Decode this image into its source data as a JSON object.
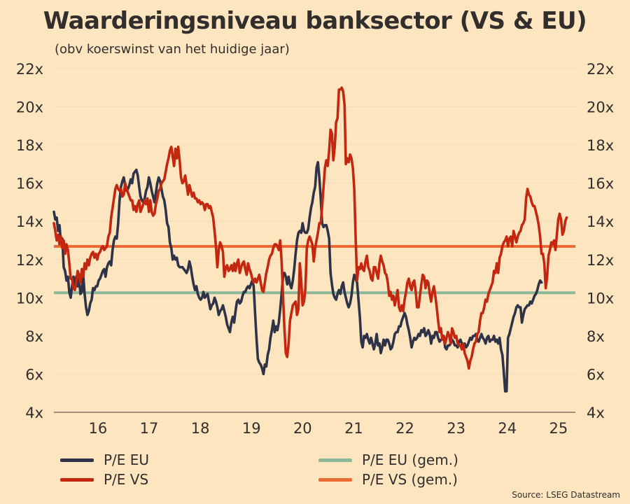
{
  "header": {
    "title": "Waarderingsniveau banksector (VS & EU)",
    "subtitle": "(obv koerswinst van het huidige jaar)"
  },
  "source": "Source: LSEG Datastream",
  "colors": {
    "background": "#fde5c0",
    "pe_eu": "#2f3347",
    "pe_vs": "#c4270f",
    "pe_eu_avg": "#8db69b",
    "pe_vs_avg": "#ec6a33",
    "grid": "#d9c4a3",
    "axis": "#6b5b4e"
  },
  "chart_data": {
    "type": "line",
    "title": "Waarderingsniveau banksector (VS & EU)",
    "subtitle": "(obv koerswinst van het huidige jaar)",
    "xlabel": "",
    "ylabel": "",
    "xlim": [
      2015.14,
      2025.33
    ],
    "ylim": [
      4,
      22
    ],
    "grid": true,
    "y_ticks": [
      4,
      6,
      8,
      10,
      12,
      14,
      16,
      18,
      20,
      22
    ],
    "y_tick_labels": [
      "4x",
      "6x",
      "8x",
      "10x",
      "12x",
      "14x",
      "16x",
      "18x",
      "20x",
      "22x"
    ],
    "x_ticks": [
      2016,
      2017,
      2018,
      2019,
      2020,
      2021,
      2022,
      2023,
      2024,
      2025
    ],
    "x_tick_labels": [
      "16",
      "17",
      "18",
      "19",
      "20",
      "21",
      "22",
      "23",
      "24",
      "25"
    ],
    "legend_position": "bottom",
    "averages": {
      "pe_eu_avg": 10.26,
      "pe_vs_avg": 12.69
    },
    "legend": [
      {
        "key": "pe_eu",
        "label": "P/E EU"
      },
      {
        "key": "pe_vs",
        "label": "P/E VS"
      },
      {
        "key": "pe_eu_avg",
        "label": "P/E EU (gem.)"
      },
      {
        "key": "pe_vs_avg",
        "label": "P/E VS (gem.)"
      }
    ],
    "series": [
      {
        "name": "P/E EU",
        "key": "pe_eu",
        "x0": 2015.14,
        "step": 0.0273,
        "values": [
          14.5,
          14.1,
          14.2,
          13.5,
          13.8,
          12.9,
          13.1,
          11.6,
          11.4,
          10.9,
          11.1,
          10.3,
          10.0,
          10.6,
          11.1,
          10.5,
          11.1,
          10.6,
          11.0,
          10.2,
          10.3,
          11.2,
          10.2,
          9.5,
          9.1,
          9.3,
          9.7,
          9.9,
          10.5,
          10.4,
          10.6,
          10.6,
          10.9,
          11.0,
          11.2,
          11.4,
          11.5,
          11.1,
          11.6,
          11.8,
          11.9,
          11.7,
          12.5,
          13.0,
          13.2,
          13.1,
          13.9,
          15.1,
          15.8,
          16.1,
          16.3,
          15.9,
          15.6,
          15.7,
          15.9,
          16.2,
          16.0,
          16.5,
          16.6,
          16.7,
          16.4,
          15.8,
          15.3,
          15.1,
          15.0,
          15.2,
          15.6,
          15.8,
          16.3,
          16.0,
          15.6,
          15.3,
          15.0,
          15.5,
          16.0,
          16.3,
          16.1,
          15.7,
          15.3,
          15.1,
          14.6,
          13.9,
          13.7,
          12.9,
          12.6,
          12.0,
          12.2,
          12.0,
          12.1,
          11.7,
          11.6,
          11.6,
          11.6,
          11.5,
          11.4,
          11.3,
          11.5,
          11.9,
          11.6,
          11.1,
          10.7,
          10.4,
          10.6,
          10.2,
          10.0,
          9.9,
          10.0,
          10.3,
          10.0,
          10.1,
          10.2,
          9.8,
          9.4,
          9.6,
          9.7,
          10.0,
          9.8,
          9.5,
          9.1,
          9.3,
          9.4,
          9.6,
          9.3,
          9.0,
          8.6,
          8.4,
          8.2,
          8.7,
          9.0,
          8.7,
          9.3,
          9.8,
          9.9,
          9.7,
          9.8,
          10.1,
          10.3,
          10.3,
          10.5,
          10.6,
          10.5,
          10.7,
          10.9,
          10.6,
          9.2,
          7.9,
          6.8,
          6.6,
          6.5,
          6.3,
          6.0,
          6.5,
          6.4,
          7.0,
          7.3,
          7.9,
          8.3,
          8.8,
          8.2,
          8.5,
          8.3,
          8.7,
          9.4,
          10.2,
          11.1,
          11.3,
          11.1,
          10.7,
          11.1,
          10.7,
          10.5,
          10.9,
          11.5,
          12.3,
          13.0,
          13.4,
          13.5,
          13.4,
          13.9,
          13.5,
          13.4,
          13.4,
          13.6,
          14.2,
          14.7,
          15.0,
          15.5,
          15.8,
          16.8,
          17.1,
          16.3,
          15.2,
          13.9,
          13.7,
          13.8,
          13.8,
          13.5,
          13.1,
          11.3,
          10.7,
          10.2,
          10.0,
          9.9,
          10.2,
          10.4,
          10.2,
          10.6,
          10.8,
          10.3,
          10.0,
          9.7,
          9.5,
          9.7,
          10.1,
          10.8,
          11.2,
          11.0,
          10.8,
          9.9,
          9.0,
          7.7,
          7.4,
          8.0,
          7.9,
          8.1,
          7.8,
          7.6,
          7.9,
          7.6,
          7.3,
          7.6,
          8.1,
          7.5,
          7.6,
          7.1,
          7.4,
          7.8,
          7.5,
          7.8,
          7.8,
          7.6,
          7.3,
          7.4,
          7.7,
          8.1,
          8.2,
          8.2,
          8.5,
          8.5,
          8.8,
          9.0,
          9.2,
          9.0,
          8.6,
          8.3,
          7.9,
          7.4,
          7.7,
          7.9,
          7.8,
          7.9,
          8.1,
          8.0,
          8.3,
          8.2,
          8.4,
          8.0,
          8.1,
          8.3,
          8.1,
          7.6,
          8.0,
          7.9,
          8.2,
          8.2,
          7.9,
          7.7,
          7.8,
          7.8,
          8.0,
          7.4,
          7.3,
          7.5,
          7.5,
          7.6,
          7.8,
          7.7,
          7.5,
          7.5,
          7.4,
          7.7,
          7.8,
          7.6,
          7.5,
          7.6,
          7.4,
          7.5,
          7.7,
          7.9,
          7.8,
          8.0,
          8.0,
          8.1,
          7.8,
          7.7,
          7.9,
          8.1,
          7.9,
          7.8,
          7.6,
          7.9,
          8.0,
          7.7,
          7.8,
          7.8,
          8.0,
          7.7,
          7.8,
          7.6,
          7.9,
          7.3,
          7.0,
          6.1,
          5.1,
          5.1,
          7.9,
          8.1,
          8.4,
          8.7,
          9.0,
          9.2,
          9.5,
          9.6,
          9.5,
          9.5,
          8.7,
          9.1,
          9.4,
          9.5,
          9.6,
          9.6,
          9.8,
          9.7,
          9.9,
          10.1,
          10.2,
          10.4,
          10.7,
          10.9,
          10.8
        ]
      },
      {
        "name": "P/E VS",
        "key": "pe_vs",
        "x0": 2015.14,
        "step": 0.0273,
        "values": [
          13.9,
          13.5,
          13.0,
          13.3,
          12.8,
          13.2,
          12.6,
          13.0,
          12.3,
          12.8,
          12.5,
          11.8,
          11.0,
          11.0,
          10.5,
          10.4,
          10.8,
          11.4,
          11.2,
          10.8,
          11.5,
          11.1,
          11.8,
          11.5,
          12.0,
          11.7,
          12.1,
          12.3,
          12.4,
          12.1,
          12.3,
          12.0,
          12.3,
          12.4,
          12.6,
          12.7,
          12.5,
          12.6,
          12.7,
          13.2,
          13.4,
          14.2,
          14.7,
          15.2,
          15.7,
          15.9,
          15.7,
          15.6,
          15.7,
          15.3,
          15.4,
          16.0,
          15.7,
          15.5,
          15.3,
          15.1,
          15.1,
          14.6,
          14.8,
          14.5,
          14.9,
          15.1,
          14.5,
          14.7,
          14.9,
          15.1,
          14.9,
          15.2,
          14.5,
          15.1,
          14.5,
          14.3,
          14.4,
          14.9,
          15.2,
          15.6,
          15.7,
          16.0,
          16.1,
          16.2,
          16.6,
          17.0,
          17.3,
          17.7,
          17.9,
          17.4,
          16.9,
          17.8,
          17.3,
          17.9,
          17.2,
          16.3,
          16.0,
          16.1,
          16.4,
          15.9,
          15.4,
          15.9,
          15.6,
          15.3,
          15.5,
          15.2,
          15.2,
          15.0,
          15.1,
          14.9,
          15.0,
          14.9,
          14.6,
          14.9,
          14.9,
          14.7,
          14.8,
          14.5,
          14.2,
          13.5,
          12.7,
          11.6,
          12.5,
          12.9,
          12.7,
          12.4,
          11.1,
          11.6,
          11.7,
          11.4,
          11.5,
          11.7,
          11.4,
          11.8,
          11.4,
          11.8,
          12.0,
          11.3,
          11.6,
          11.8,
          11.9,
          11.5,
          11.2,
          11.8,
          11.5,
          11.3,
          11.0,
          10.8,
          11.0,
          10.8,
          11.0,
          11.2,
          10.8,
          10.4,
          10.3,
          10.8,
          11.3,
          11.6,
          12.0,
          12.2,
          12.3,
          12.6,
          12.8,
          12.8,
          12.7,
          12.5,
          13.0,
          11.9,
          10.1,
          8.4,
          7.1,
          6.9,
          7.6,
          8.8,
          9.2,
          9.6,
          9.7,
          9.8,
          9.1,
          9.4,
          11.8,
          10.9,
          9.6,
          9.8,
          10.5,
          12.6,
          13.0,
          13.2,
          13.0,
          12.8,
          11.9,
          12.6,
          13.0,
          13.4,
          13.9,
          13.9,
          14.8,
          15.8,
          16.8,
          17.2,
          16.9,
          17.7,
          18.8,
          18.6,
          17.2,
          17.9,
          19.2,
          19.4,
          20.9,
          20.9,
          21.0,
          20.8,
          20.1,
          17.0,
          17.3,
          17.1,
          17.5,
          17.3,
          16.8,
          15.7,
          13.1,
          10.9,
          11.6,
          11.5,
          11.8,
          11.5,
          11.4,
          11.9,
          12.2,
          11.6,
          11.4,
          11.0,
          10.9,
          11.6,
          11.6,
          11.3,
          11.0,
          11.8,
          12.2,
          11.9,
          11.7,
          11.3,
          11.2,
          10.8,
          10.1,
          10.3,
          9.9,
          10.1,
          9.6,
          10.0,
          10.4,
          9.5,
          9.3,
          9.6,
          9.3,
          9.9,
          10.3,
          10.8,
          11.0,
          10.6,
          10.4,
          10.8,
          10.9,
          10.3,
          9.5,
          9.5,
          10.1,
          10.7,
          11.2,
          11.1,
          10.5,
          10.9,
          10.8,
          10.2,
          9.8,
          10.3,
          10.6,
          10.1,
          9.5,
          8.8,
          8.2,
          8.4,
          7.8,
          8.0,
          7.6,
          7.9,
          8.2,
          8.0,
          7.6,
          8.4,
          8.2,
          7.9,
          8.0,
          7.6,
          7.5,
          7.5,
          7.3,
          7.6,
          7.1,
          6.9,
          6.7,
          6.3,
          6.7,
          6.9,
          7.3,
          7.6,
          7.7,
          8.1,
          8.2,
          8.8,
          9.2,
          9.2,
          9.5,
          9.9,
          9.8,
          10.2,
          10.4,
          10.6,
          10.8,
          11.4,
          11.3,
          11.8,
          11.3,
          12.1,
          12.3,
          12.7,
          12.9,
          13.0,
          13.2,
          12.7,
          13.1,
          13.2,
          12.7,
          13.5,
          13.2,
          12.9,
          13.2,
          13.4,
          13.5,
          13.8,
          13.9,
          14.1,
          15.2,
          15.7,
          15.4,
          15.3,
          15.0,
          14.8,
          14.8,
          14.5,
          14.2,
          13.8,
          13.2,
          12.3,
          12.3,
          11.8,
          10.5,
          11.1,
          12.2,
          12.5,
          12.9,
          12.8,
          13.0,
          12.5,
          13.3,
          14.1,
          14.4,
          14.1,
          13.3,
          13.5,
          14.0,
          14.2
        ]
      }
    ]
  }
}
